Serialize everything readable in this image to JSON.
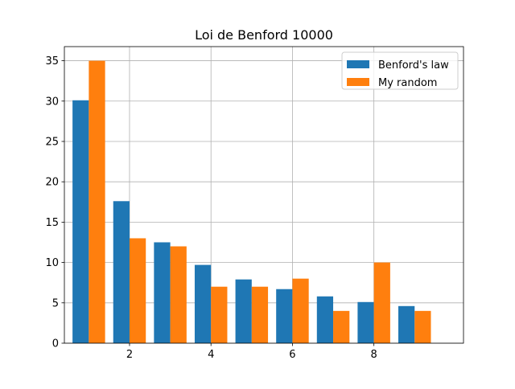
{
  "chart_data": {
    "type": "bar",
    "title": "Loi de Benford 10000",
    "xlabel": "",
    "ylabel": "",
    "categories": [
      1,
      2,
      3,
      4,
      5,
      6,
      7,
      8,
      9
    ],
    "series": [
      {
        "name": "Benford's law",
        "color": "#1f77b4",
        "values": [
          30.1,
          17.6,
          12.5,
          9.7,
          7.9,
          6.7,
          5.8,
          5.1,
          4.6
        ]
      },
      {
        "name": "My random",
        "color": "#ff7f0e",
        "values": [
          35,
          13,
          12,
          7,
          7,
          8,
          4,
          10,
          4
        ]
      }
    ],
    "xlim": [
      0.4,
      10.2
    ],
    "ylim": [
      0,
      36.75
    ],
    "xticks": [
      2,
      4,
      6,
      8
    ],
    "yticks": [
      0,
      5,
      10,
      15,
      20,
      25,
      30,
      35
    ],
    "grid": true,
    "legend": "top-right"
  }
}
